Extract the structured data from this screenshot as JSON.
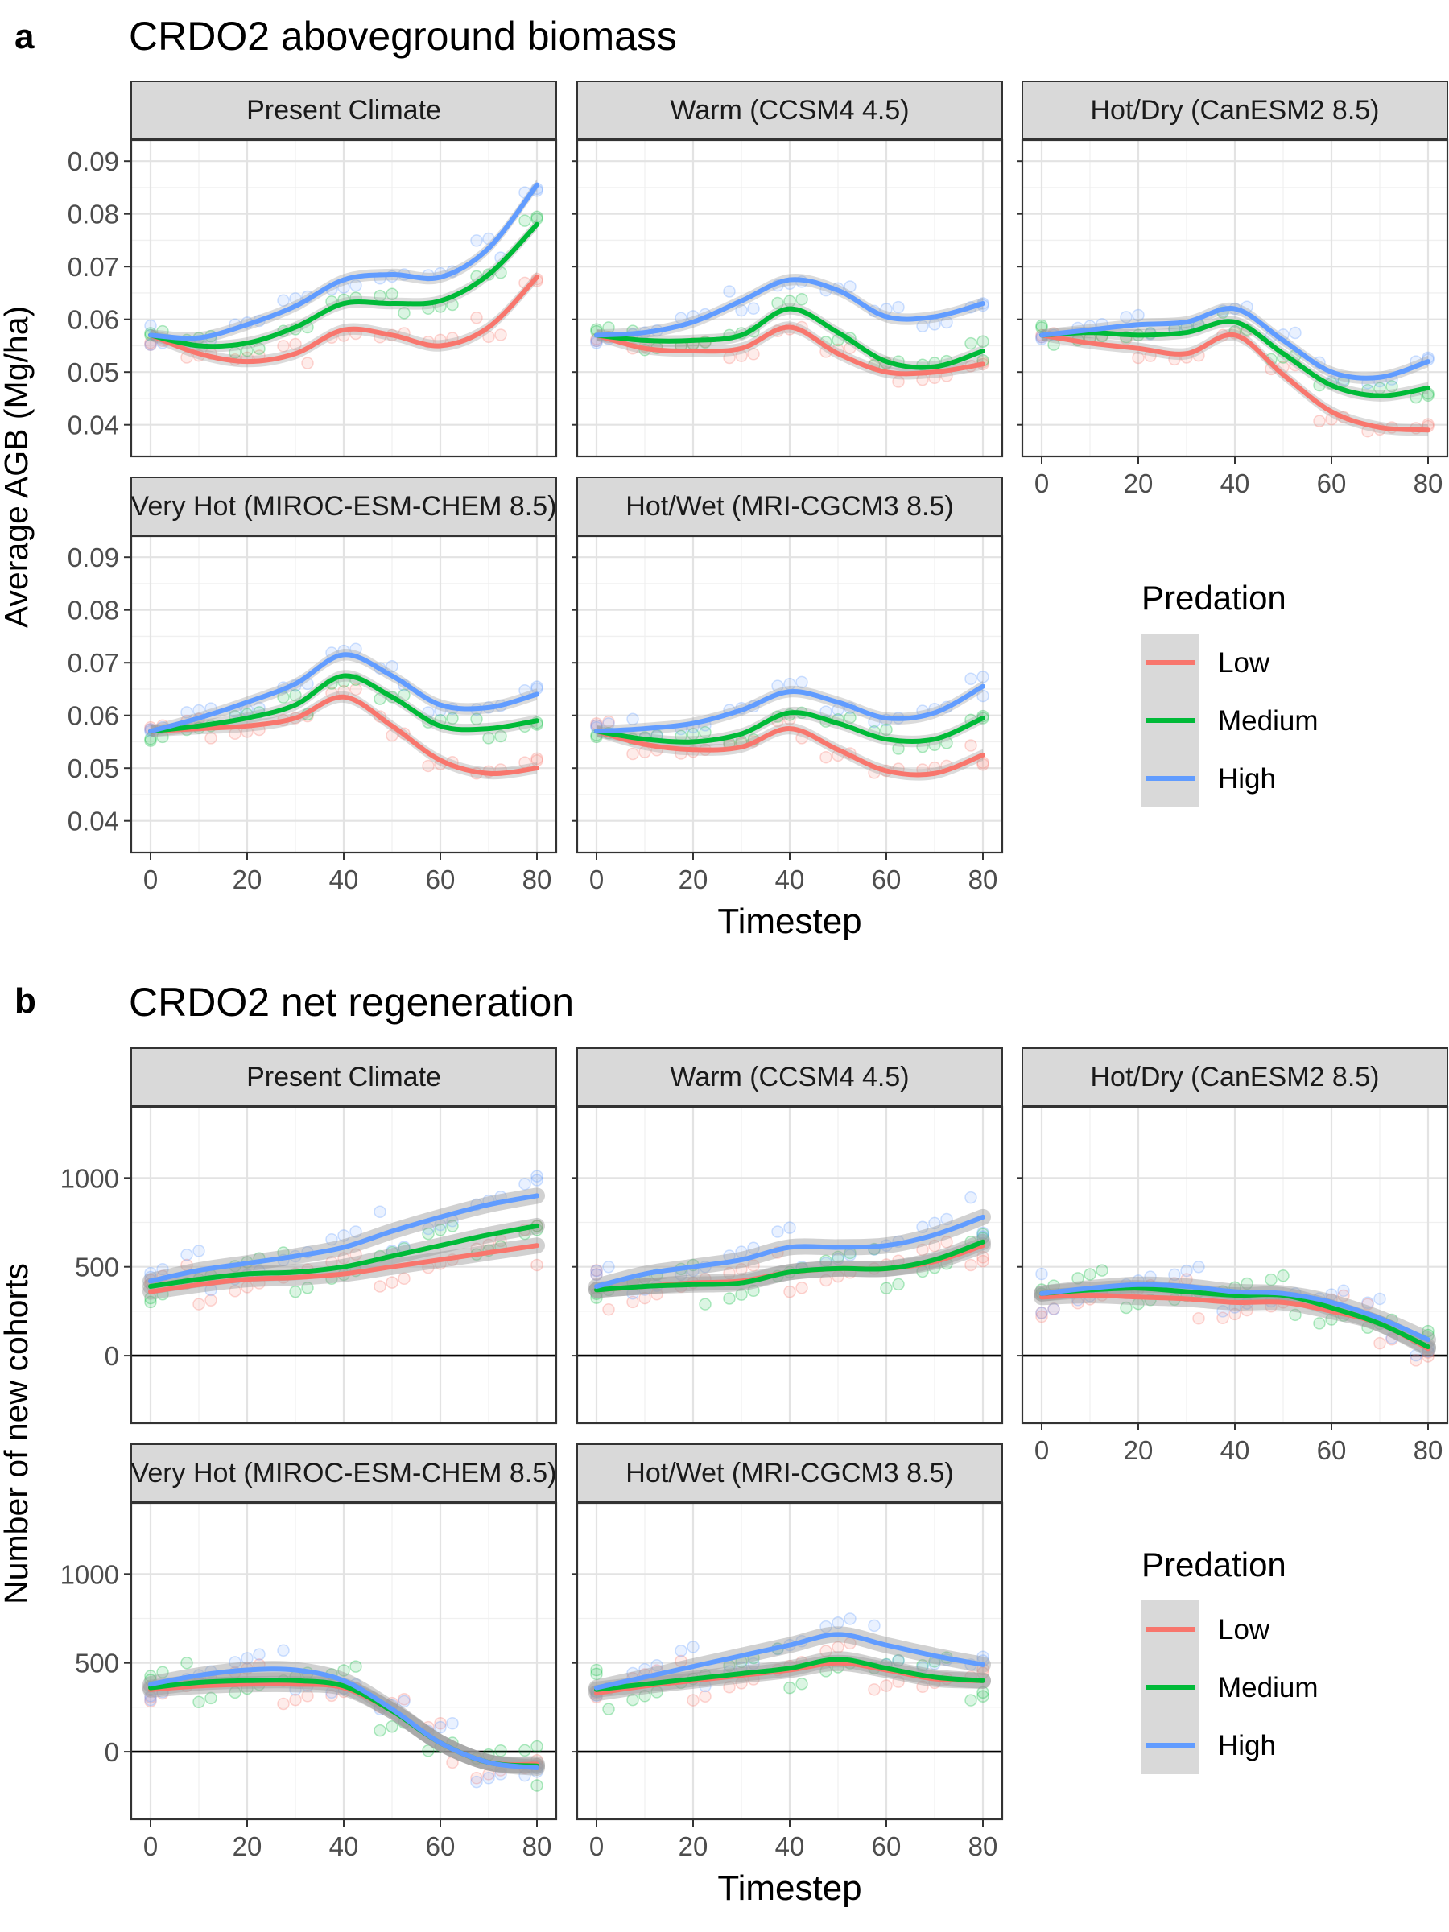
{
  "figure": {
    "section_a": {
      "letter": "a",
      "title": "CRDO2 aboveground biomass"
    },
    "section_b": {
      "letter": "b",
      "title": "CRDO2 net regeneration"
    },
    "xlabel": "Timestep",
    "legend_title": "Predation",
    "legend_labels": [
      "Low",
      "Medium",
      "High"
    ]
  },
  "colors": {
    "Low": "#F8766D",
    "Medium": "#00BA38",
    "High": "#619CFF"
  },
  "chart_data": [
    {
      "type": "line",
      "title": "CRDO2 aboveground biomass",
      "ylabel": "Average AGB (Mg/ha)",
      "xlabel": "Timestep",
      "xticks": [
        0,
        20,
        40,
        60,
        80
      ],
      "yticks": [
        "0.04",
        "0.05",
        "0.06",
        "0.07",
        "0.08",
        "0.09"
      ],
      "ylim": [
        0.034,
        0.094
      ],
      "xlim": [
        -4,
        84
      ],
      "hline": null,
      "grid": true,
      "legend_position": "right",
      "x": [
        0,
        10,
        20,
        30,
        40,
        50,
        60,
        70,
        80
      ],
      "panels": [
        {
          "strip": "Present Climate",
          "series": [
            {
              "name": "Low",
              "values": [
                0.057,
                0.0535,
                0.052,
                0.0535,
                0.058,
                0.057,
                0.055,
                0.0585,
                0.068
              ]
            },
            {
              "name": "Medium",
              "values": [
                0.057,
                0.055,
                0.0555,
                0.0585,
                0.063,
                0.063,
                0.0635,
                0.0685,
                0.078
              ]
            },
            {
              "name": "High",
              "values": [
                0.057,
                0.0565,
                0.059,
                0.0625,
                0.0675,
                0.0685,
                0.068,
                0.0735,
                0.0855
              ]
            }
          ]
        },
        {
          "strip": "Warm (CCSM4 4.5)",
          "series": [
            {
              "name": "Low",
              "values": [
                0.057,
                0.0545,
                0.054,
                0.0545,
                0.0585,
                0.0535,
                0.05,
                0.05,
                0.0515
              ]
            },
            {
              "name": "Medium",
              "values": [
                0.057,
                0.056,
                0.056,
                0.057,
                0.062,
                0.0575,
                0.052,
                0.051,
                0.054
              ]
            },
            {
              "name": "High",
              "values": [
                0.057,
                0.0575,
                0.0595,
                0.0635,
                0.0675,
                0.0655,
                0.0605,
                0.0605,
                0.063
              ]
            }
          ]
        },
        {
          "strip": "Hot/Dry (CanESM2 8.5)",
          "series": [
            {
              "name": "Low",
              "values": [
                0.057,
                0.0555,
                0.0545,
                0.0535,
                0.057,
                0.0495,
                0.0425,
                0.0395,
                0.039
              ]
            },
            {
              "name": "Medium",
              "values": [
                0.057,
                0.0575,
                0.057,
                0.0575,
                0.0595,
                0.0535,
                0.0475,
                0.0455,
                0.047
              ]
            },
            {
              "name": "High",
              "values": [
                0.057,
                0.058,
                0.059,
                0.0595,
                0.062,
                0.056,
                0.05,
                0.049,
                0.052
              ]
            }
          ]
        },
        {
          "strip": "Very Hot (MIROC-ESM-CHEM 8.5)",
          "series": [
            {
              "name": "Low",
              "values": [
                0.057,
                0.0575,
                0.058,
                0.0595,
                0.0635,
                0.058,
                0.0515,
                0.049,
                0.05
              ]
            },
            {
              "name": "Medium",
              "values": [
                0.057,
                0.058,
                0.0595,
                0.062,
                0.0675,
                0.0635,
                0.058,
                0.0575,
                0.059
              ]
            },
            {
              "name": "High",
              "values": [
                0.057,
                0.0595,
                0.0625,
                0.066,
                0.0715,
                0.0675,
                0.062,
                0.0615,
                0.064
              ]
            }
          ]
        },
        {
          "strip": "Hot/Wet (MRI-CGCM3 8.5)",
          "series": [
            {
              "name": "Low",
              "values": [
                0.057,
                0.0545,
                0.0535,
                0.054,
                0.0575,
                0.0535,
                0.0495,
                0.049,
                0.0525
              ]
            },
            {
              "name": "Medium",
              "values": [
                0.057,
                0.0555,
                0.055,
                0.0565,
                0.0605,
                0.0585,
                0.0555,
                0.0555,
                0.0595
              ]
            },
            {
              "name": "High",
              "values": [
                0.057,
                0.0575,
                0.0585,
                0.061,
                0.0645,
                0.0625,
                0.0595,
                0.0605,
                0.0655
              ]
            }
          ]
        }
      ]
    },
    {
      "type": "line",
      "title": "CRDO2 net regeneration",
      "ylabel": "Number of new cohorts",
      "xlabel": "Timestep",
      "xticks": [
        0,
        20,
        40,
        60,
        80
      ],
      "yticks": [
        "0",
        "500",
        "1000"
      ],
      "ylim": [
        -380,
        1400
      ],
      "xlim": [
        -4,
        84
      ],
      "hline": 0,
      "grid": true,
      "legend_position": "right",
      "x": [
        0,
        10,
        20,
        30,
        40,
        50,
        60,
        70,
        80
      ],
      "panels": [
        {
          "strip": "Present Climate",
          "series": [
            {
              "name": "Low",
              "values": [
                360,
                400,
                430,
                440,
                460,
                500,
                540,
                580,
                620
              ]
            },
            {
              "name": "Medium",
              "values": [
                390,
                430,
                460,
                470,
                500,
                560,
                620,
                680,
                730
              ]
            },
            {
              "name": "High",
              "values": [
                420,
                480,
                520,
                560,
                610,
                700,
                780,
                850,
                900
              ]
            }
          ]
        },
        {
          "strip": "Warm (CCSM4 4.5)",
          "series": [
            {
              "name": "Low",
              "values": [
                370,
                390,
                410,
                420,
                470,
                490,
                490,
                530,
                620
              ]
            },
            {
              "name": "Medium",
              "values": [
                370,
                390,
                400,
                410,
                470,
                490,
                490,
                540,
                640
              ]
            },
            {
              "name": "High",
              "values": [
                390,
                460,
                500,
                540,
                610,
                610,
                620,
                680,
                780
              ]
            }
          ]
        },
        {
          "strip": "Hot/Dry (CanESM2 8.5)",
          "series": [
            {
              "name": "Low",
              "values": [
                330,
                340,
                330,
                320,
                300,
                300,
                250,
                180,
                40
              ]
            },
            {
              "name": "Medium",
              "values": [
                350,
                370,
                380,
                360,
                340,
                340,
                270,
                180,
                50
              ]
            },
            {
              "name": "High",
              "values": [
                350,
                380,
                400,
                390,
                360,
                350,
                300,
                210,
                90
              ]
            }
          ]
        },
        {
          "strip": "Very Hot (MIROC-ESM-CHEM 8.5)",
          "series": [
            {
              "name": "Low",
              "values": [
                350,
                370,
                380,
                380,
                360,
                230,
                50,
                -60,
                -70
              ]
            },
            {
              "name": "Medium",
              "values": [
                360,
                390,
                400,
                400,
                370,
                230,
                50,
                -60,
                -80
              ]
            },
            {
              "name": "High",
              "values": [
                380,
                430,
                460,
                460,
                400,
                240,
                50,
                -60,
                -90
              ]
            }
          ]
        },
        {
          "strip": "Hot/Wet (MRI-CGCM3 8.5)",
          "series": [
            {
              "name": "Low",
              "values": [
                330,
                370,
                400,
                430,
                460,
                500,
                460,
                410,
                400
              ]
            },
            {
              "name": "Medium",
              "values": [
                350,
                380,
                410,
                440,
                470,
                520,
                470,
                420,
                400
              ]
            },
            {
              "name": "High",
              "values": [
                360,
                420,
                480,
                540,
                600,
                660,
                600,
                540,
                490
              ]
            }
          ]
        }
      ]
    }
  ]
}
